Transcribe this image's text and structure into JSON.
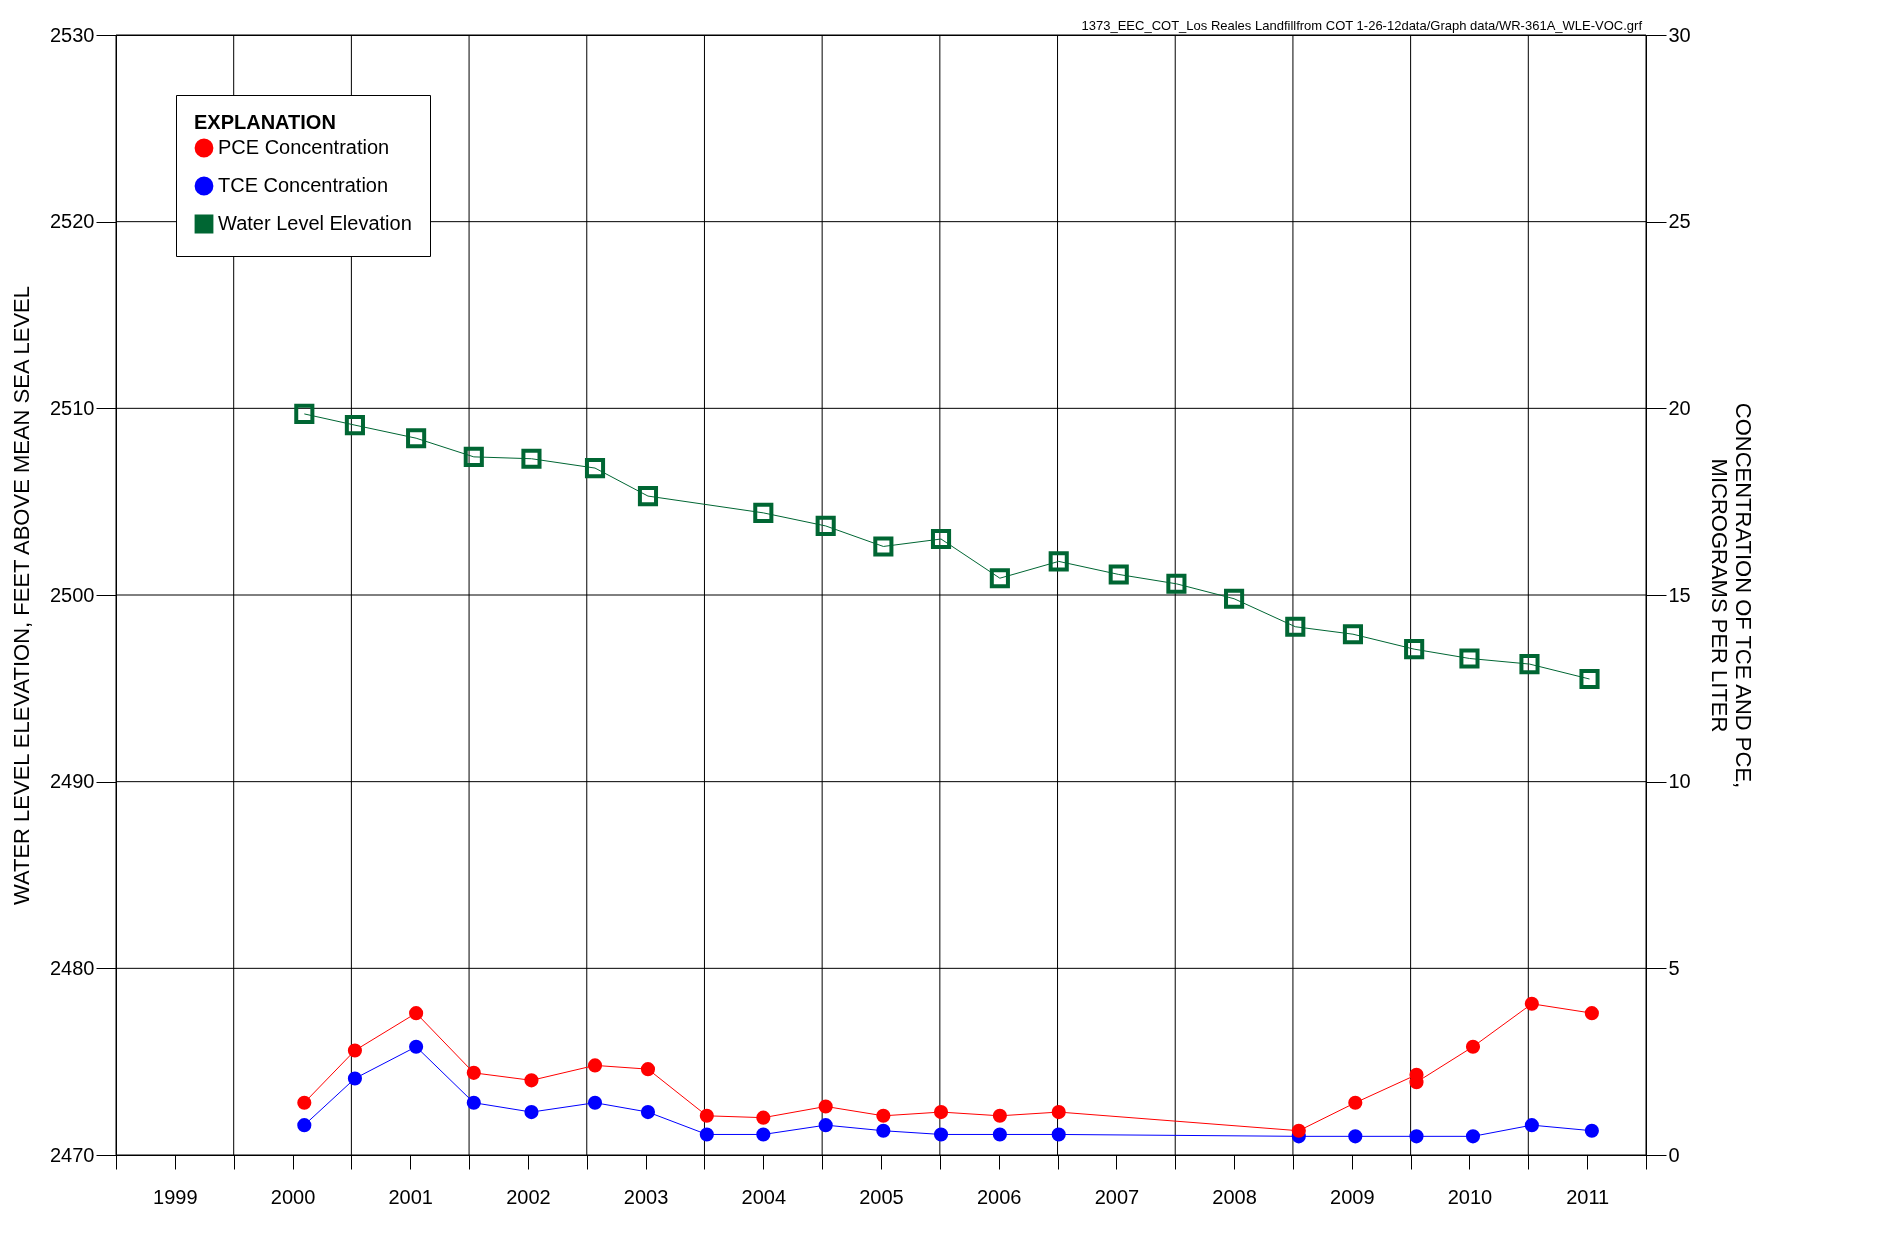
{
  "chart_data": {
    "type": "line",
    "ylabel": "WATER LEVEL ELEVATION, FEET ABOVE MEAN SEA LEVEL",
    "y2label": "CONCENTRATION OF TCE AND PCE,\nMICROGRAMS PER LITER",
    "legend_title": "EXPLANATION",
    "annotations": [
      "1373_EEC_COT_Los Reales Landfillfrom COT 1-26-12data/Graph data/WR-361A_WLE-VOC.grf"
    ],
    "xlim": [
      1999,
      2012
    ],
    "xticks": [
      {
        "value": 1999,
        "label": null
      },
      {
        "value": 1999.5,
        "label": "1999"
      },
      {
        "value": 2000,
        "label": null
      },
      {
        "value": 2000.5,
        "label": "2000"
      },
      {
        "value": 2001,
        "label": null
      },
      {
        "value": 2001.5,
        "label": "2001"
      },
      {
        "value": 2002,
        "label": null
      },
      {
        "value": 2002.5,
        "label": "2002"
      },
      {
        "value": 2003,
        "label": null
      },
      {
        "value": 2003.5,
        "label": "2003"
      },
      {
        "value": 2004,
        "label": null
      },
      {
        "value": 2004.5,
        "label": "2004"
      },
      {
        "value": 2005,
        "label": null
      },
      {
        "value": 2005.5,
        "label": "2005"
      },
      {
        "value": 2006,
        "label": null
      },
      {
        "value": 2006.5,
        "label": "2006"
      },
      {
        "value": 2007,
        "label": null
      },
      {
        "value": 2007.5,
        "label": "2007"
      },
      {
        "value": 2008,
        "label": null
      },
      {
        "value": 2008.5,
        "label": "2008"
      },
      {
        "value": 2009,
        "label": null
      },
      {
        "value": 2009.5,
        "label": "2009"
      },
      {
        "value": 2010,
        "label": null
      },
      {
        "value": 2010.5,
        "label": "2010"
      },
      {
        "value": 2011,
        "label": null
      },
      {
        "value": 2011.5,
        "label": "2011"
      },
      {
        "value": 2012,
        "label": null
      }
    ],
    "ylim": [
      2470,
      2530
    ],
    "yticks": [
      2470,
      2480,
      2490,
      2500,
      2510,
      2520,
      2530
    ],
    "y2lim": [
      0,
      30
    ],
    "y2ticks": [
      0,
      5,
      10,
      15,
      20,
      25,
      30
    ],
    "grid": true,
    "legend": "top left",
    "series": [
      {
        "name": "PCE Concentration",
        "color": "#ff0000",
        "axis": "y2",
        "marker": "circle",
        "x": [
          2000.6,
          2001.03,
          2001.55,
          2002.04,
          2002.53,
          2003.07,
          2003.52,
          2004.02,
          2004.5,
          2005.03,
          2005.52,
          2006.01,
          2006.51,
          2007.01,
          2009.05,
          2009.53,
          2010.05,
          2010.05,
          2010.53,
          2011.03,
          2011.54
        ],
        "values": [
          1.4,
          2.8,
          3.8,
          2.2,
          2.0,
          2.4,
          2.3,
          1.05,
          1.0,
          1.3,
          1.05,
          1.15,
          1.05,
          1.15,
          0.65,
          1.4,
          2.15,
          1.95,
          2.9,
          4.05,
          3.8
        ]
      },
      {
        "name": "TCE Concentration",
        "color": "#0000ff",
        "axis": "y2",
        "marker": "circle",
        "x": [
          2000.6,
          2001.03,
          2001.55,
          2002.04,
          2002.53,
          2003.07,
          2003.52,
          2004.02,
          2004.5,
          2005.03,
          2005.52,
          2006.01,
          2006.51,
          2007.01,
          2009.05,
          2009.53,
          2010.05,
          2010.53,
          2011.03,
          2011.54
        ],
        "values": [
          0.8,
          2.05,
          2.9,
          1.4,
          1.15,
          1.4,
          1.15,
          0.55,
          0.55,
          0.8,
          0.65,
          0.55,
          0.55,
          0.55,
          0.5,
          0.5,
          0.5,
          0.5,
          0.8,
          0.65
        ]
      },
      {
        "name": "Water Level Elevation",
        "color": "#006633",
        "marker": "square",
        "x": [
          2000.6,
          2001.03,
          2001.55,
          2002.04,
          2002.53,
          2003.07,
          2003.52,
          2004.5,
          2005.03,
          2005.52,
          2006.01,
          2006.51,
          2007.01,
          2007.52,
          2008.01,
          2008.5,
          2009.02,
          2009.51,
          2010.03,
          2010.5,
          2011.01,
          2011.52
        ],
        "values": [
          2509.7,
          2509.1,
          2508.4,
          2507.4,
          2507.3,
          2506.8,
          2505.3,
          2504.4,
          2503.7,
          2502.6,
          2503.0,
          2500.9,
          2501.8,
          2501.1,
          2500.6,
          2499.8,
          2498.3,
          2497.9,
          2497.1,
          2496.6,
          2496.3,
          2495.5
        ]
      }
    ]
  }
}
